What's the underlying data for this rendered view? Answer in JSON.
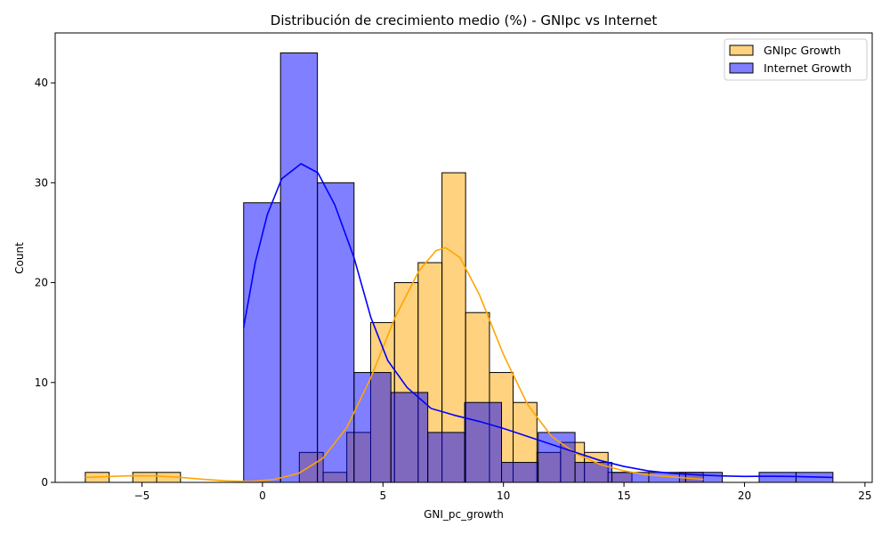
{
  "chart_data": {
    "type": "bar",
    "title": "Distribución de crecimiento medio (%) - GNIpc vs Internet",
    "xlabel": "GNI_pc_growth",
    "ylabel": "Count",
    "xlim": [
      -8.6,
      25.3
    ],
    "ylim": [
      0,
      45
    ],
    "xticks": [
      -5,
      0,
      5,
      10,
      15,
      20,
      25
    ],
    "yticks": [
      0,
      10,
      20,
      30,
      40
    ],
    "grid": false,
    "legend_position": "top-right",
    "series": [
      {
        "name": "GNIpc Growth",
        "color": "#FFA500",
        "fill_opacity": 0.5,
        "bins": [
          {
            "x0": -7.35,
            "x1": -6.36,
            "count": 1
          },
          {
            "x0": -5.38,
            "x1": -4.39,
            "count": 1
          },
          {
            "x0": -4.39,
            "x1": -3.4,
            "count": 1
          },
          {
            "x0": 1.53,
            "x1": 2.52,
            "count": 3
          },
          {
            "x0": 2.52,
            "x1": 3.5,
            "count": 1
          },
          {
            "x0": 3.5,
            "x1": 4.49,
            "count": 5
          },
          {
            "x0": 4.49,
            "x1": 5.48,
            "count": 16
          },
          {
            "x0": 5.48,
            "x1": 6.46,
            "count": 20
          },
          {
            "x0": 6.46,
            "x1": 7.45,
            "count": 22
          },
          {
            "x0": 7.45,
            "x1": 8.43,
            "count": 31
          },
          {
            "x0": 8.43,
            "x1": 9.42,
            "count": 17
          },
          {
            "x0": 9.42,
            "x1": 10.4,
            "count": 11
          },
          {
            "x0": 10.4,
            "x1": 11.39,
            "count": 8
          },
          {
            "x0": 11.39,
            "x1": 12.37,
            "count": 3
          },
          {
            "x0": 12.37,
            "x1": 13.36,
            "count": 4
          },
          {
            "x0": 13.36,
            "x1": 14.34,
            "count": 3
          },
          {
            "x0": 14.34,
            "x1": 15.33,
            "count": 1
          },
          {
            "x0": 17.3,
            "x1": 18.29,
            "count": 1
          }
        ],
        "kde": [
          [
            -7.35,
            0.5
          ],
          [
            -6.5,
            0.58
          ],
          [
            -5.5,
            0.66
          ],
          [
            -4.5,
            0.65
          ],
          [
            -3.5,
            0.52
          ],
          [
            -2.5,
            0.32
          ],
          [
            -1.5,
            0.15
          ],
          [
            -0.5,
            0.08
          ],
          [
            0.5,
            0.3
          ],
          [
            1.5,
            0.9
          ],
          [
            2.5,
            2.4
          ],
          [
            3.5,
            5.5
          ],
          [
            4.5,
            10.5
          ],
          [
            5.5,
            16.5
          ],
          [
            6.5,
            21.2
          ],
          [
            7.2,
            23.2
          ],
          [
            7.6,
            23.5
          ],
          [
            8.2,
            22.5
          ],
          [
            9.0,
            18.8
          ],
          [
            10.0,
            12.8
          ],
          [
            11.0,
            7.8
          ],
          [
            12.0,
            4.6
          ],
          [
            13.0,
            2.9
          ],
          [
            14.0,
            1.8
          ],
          [
            15.0,
            1.15
          ],
          [
            16.0,
            0.75
          ],
          [
            17.0,
            0.55
          ],
          [
            18.29,
            0.3
          ]
        ]
      },
      {
        "name": "Internet Growth",
        "color": "#0000FF",
        "fill_opacity": 0.5,
        "bins": [
          {
            "x0": -0.78,
            "x1": 0.75,
            "count": 28
          },
          {
            "x0": 0.75,
            "x1": 2.28,
            "count": 43
          },
          {
            "x0": 2.28,
            "x1": 3.8,
            "count": 30
          },
          {
            "x0": 3.8,
            "x1": 5.33,
            "count": 11
          },
          {
            "x0": 5.33,
            "x1": 6.86,
            "count": 9
          },
          {
            "x0": 6.86,
            "x1": 8.39,
            "count": 5
          },
          {
            "x0": 8.39,
            "x1": 9.92,
            "count": 8
          },
          {
            "x0": 9.92,
            "x1": 11.44,
            "count": 2
          },
          {
            "x0": 11.44,
            "x1": 12.97,
            "count": 5
          },
          {
            "x0": 12.97,
            "x1": 14.5,
            "count": 2
          },
          {
            "x0": 14.5,
            "x1": 16.03,
            "count": 1
          },
          {
            "x0": 16.03,
            "x1": 17.56,
            "count": 1
          },
          {
            "x0": 17.56,
            "x1": 19.08,
            "count": 1
          },
          {
            "x0": 20.61,
            "x1": 22.14,
            "count": 1
          },
          {
            "x0": 22.14,
            "x1": 23.67,
            "count": 1
          }
        ],
        "kde": [
          [
            -0.78,
            15.5
          ],
          [
            -0.3,
            22.0
          ],
          [
            0.2,
            26.8
          ],
          [
            0.8,
            30.4
          ],
          [
            1.6,
            31.9
          ],
          [
            2.3,
            31.0
          ],
          [
            3.0,
            27.8
          ],
          [
            3.8,
            22.5
          ],
          [
            4.5,
            16.5
          ],
          [
            5.2,
            12.2
          ],
          [
            6.0,
            9.5
          ],
          [
            7.0,
            7.4
          ],
          [
            8.0,
            6.7
          ],
          [
            9.0,
            6.1
          ],
          [
            10.0,
            5.4
          ],
          [
            11.0,
            4.6
          ],
          [
            12.0,
            3.8
          ],
          [
            13.0,
            3.0
          ],
          [
            14.0,
            2.2
          ],
          [
            15.0,
            1.6
          ],
          [
            16.0,
            1.15
          ],
          [
            17.0,
            0.9
          ],
          [
            18.0,
            0.75
          ],
          [
            19.0,
            0.65
          ],
          [
            20.0,
            0.6
          ],
          [
            21.0,
            0.62
          ],
          [
            22.0,
            0.6
          ],
          [
            23.67,
            0.5
          ]
        ]
      }
    ]
  }
}
